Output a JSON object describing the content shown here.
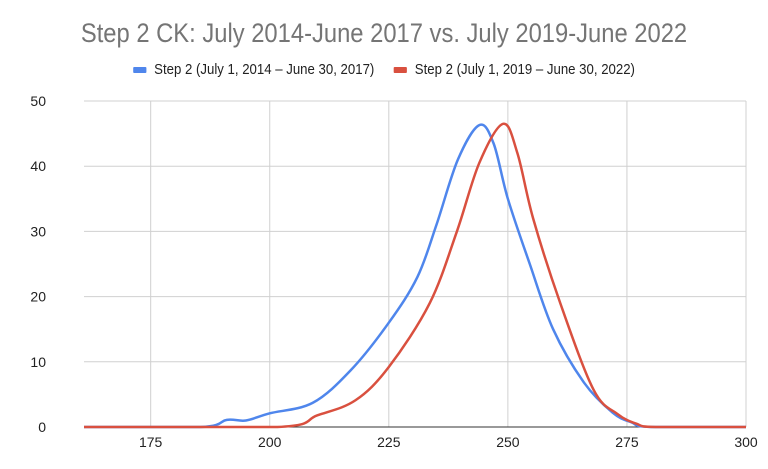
{
  "chart_data": {
    "type": "line",
    "title": "Step 2 CK: July 2014-June 2017 vs. July 2019-June 2022",
    "xlabel": "",
    "ylabel": "",
    "xlim": [
      161,
      300
    ],
    "ylim": [
      0,
      50
    ],
    "x_ticks": [
      175,
      200,
      225,
      250,
      275,
      300
    ],
    "y_ticks": [
      0,
      10,
      20,
      30,
      40,
      50
    ],
    "grid": true,
    "legend_position": "top",
    "series": [
      {
        "name": "Step 2 (July 1, 2014 – June 30, 2017)",
        "color": "#4f86ec",
        "x": [
          161,
          185.5,
          191,
          195,
          200,
          209,
          217,
          225,
          231,
          235,
          239.5,
          244,
          247,
          250,
          254.6,
          259.5,
          266,
          272,
          276,
          280,
          300
        ],
        "y": [
          0,
          0,
          1.1,
          1,
          2.1,
          3.7,
          8.7,
          16,
          23,
          31,
          41,
          46.3,
          43.5,
          35,
          25,
          15,
          6.8,
          2.2,
          0.7,
          0,
          0
        ]
      },
      {
        "name": "Step 2 (July 1, 2019 – June 30, 2022)",
        "color": "#d9503f",
        "x": [
          161,
          201.6,
          210,
          218,
          225,
          233.6,
          239.3,
          244,
          249,
          252,
          255.3,
          261,
          268,
          273,
          277,
          281,
          300
        ],
        "y": [
          0,
          0,
          1.8,
          4.1,
          9.2,
          19,
          30,
          40.5,
          46.5,
          42,
          32,
          19,
          5.7,
          2,
          0.5,
          0,
          0
        ]
      }
    ]
  }
}
